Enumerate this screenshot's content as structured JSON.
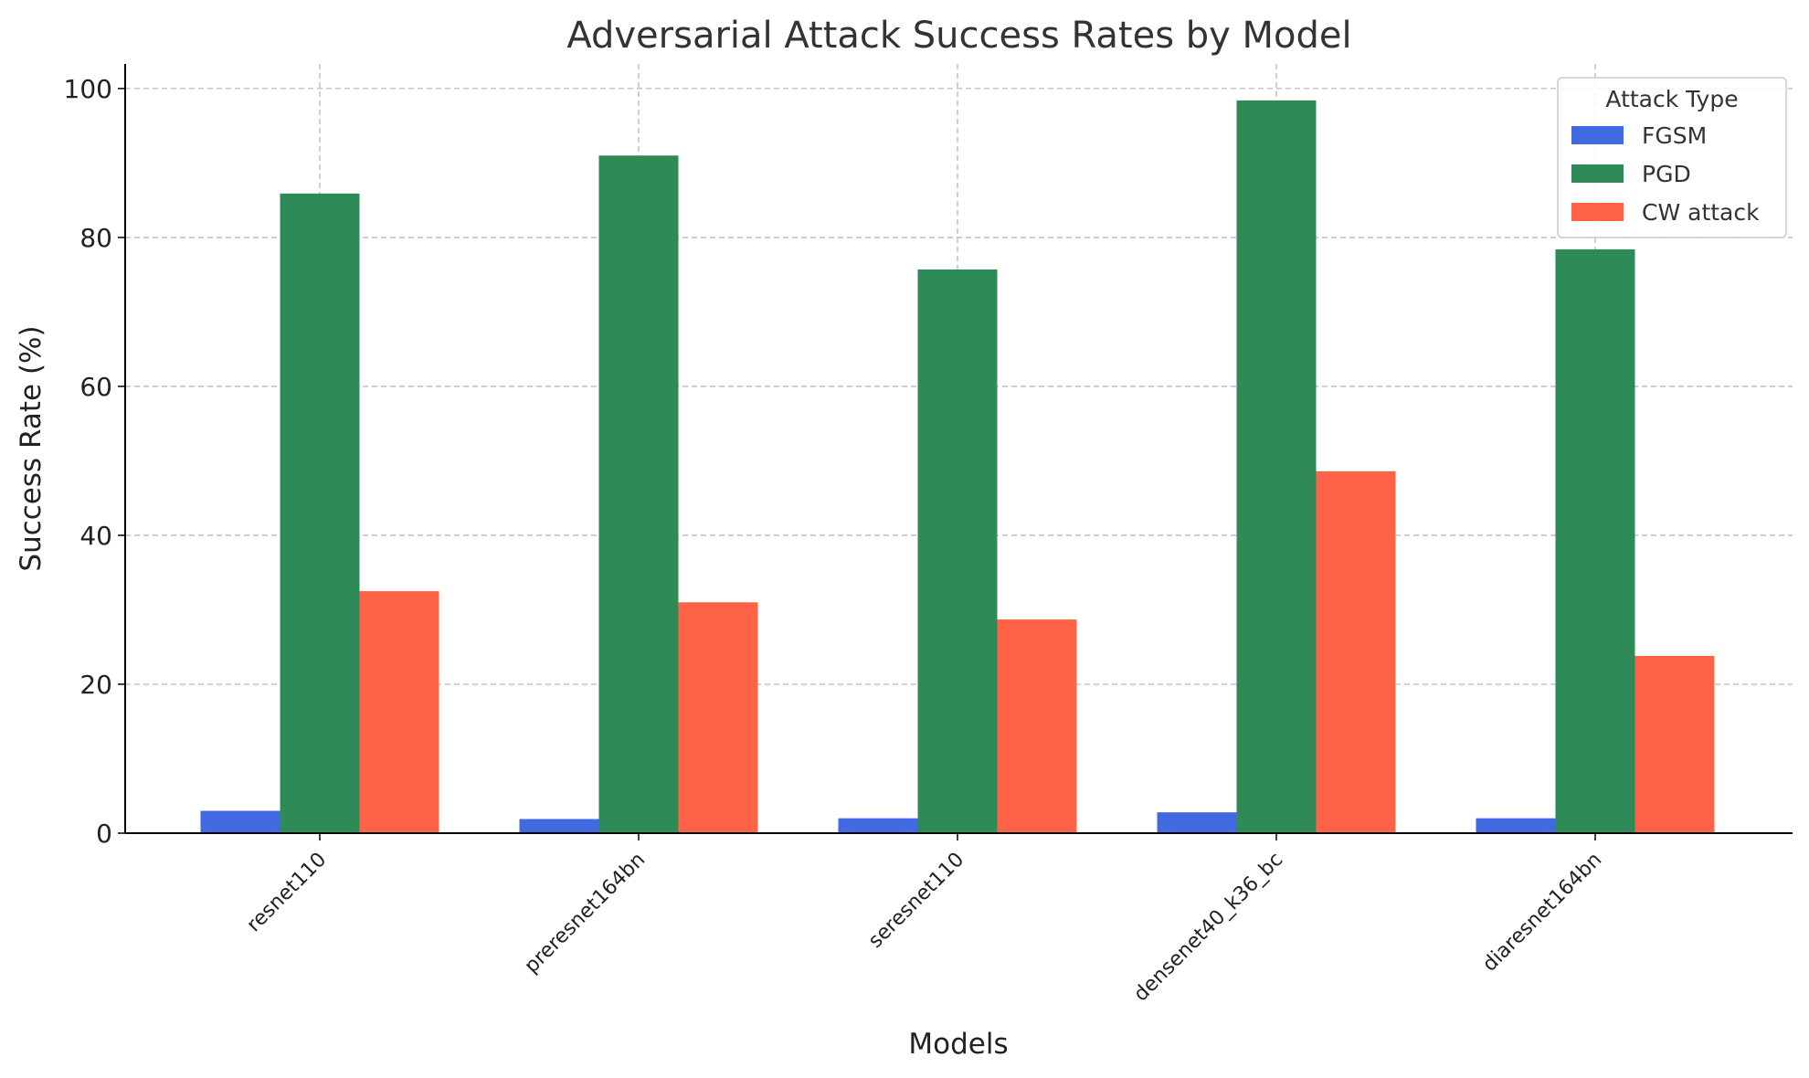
{
  "chart_data": {
    "type": "bar",
    "title": "Adversarial Attack Success Rates by Model",
    "xlabel": "Models",
    "ylabel": "Success Rate (%)",
    "categories": [
      "resnet110",
      "preresnet164bn",
      "seresnet110",
      "densenet40_k36_bc",
      "diaresnet164bn"
    ],
    "series": [
      {
        "name": "FGSM",
        "color": "#4169e1",
        "values": [
          3.0,
          1.9,
          2.0,
          2.8,
          2.0
        ]
      },
      {
        "name": "PGD",
        "color": "#2e8b57",
        "values": [
          85.9,
          91.0,
          75.7,
          98.4,
          78.4
        ]
      },
      {
        "name": "CW attack",
        "color": "#ff6347",
        "values": [
          32.5,
          31.0,
          28.7,
          48.6,
          23.8
        ]
      }
    ],
    "ylim": [
      0,
      103.3
    ],
    "yticks": [
      0,
      20,
      40,
      60,
      80,
      100
    ],
    "grid": true,
    "legend": {
      "title": "Attack Type",
      "placement": "top-right"
    }
  }
}
